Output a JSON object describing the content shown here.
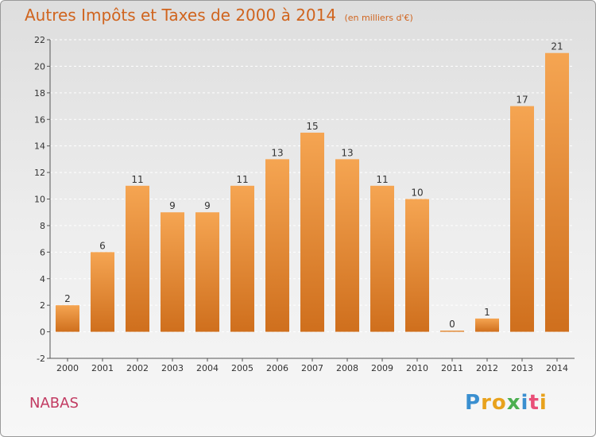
{
  "header": {
    "title": "Autres Impôts et Taxes de 2000 à 2014",
    "unit": "(en milliers d'€)"
  },
  "footer": {
    "commune": "NABAS",
    "brand": "Proxiti"
  },
  "colors": {
    "bar_top": "#f5a552",
    "bar_bottom": "#cf6f1d",
    "title": "#d0641e",
    "commune": "#c23b62",
    "axis": "#555555",
    "grid": "#ffffff"
  },
  "chart_data": {
    "type": "bar",
    "categories": [
      "2000",
      "2001",
      "2002",
      "2003",
      "2004",
      "2005",
      "2006",
      "2007",
      "2008",
      "2009",
      "2010",
      "2011",
      "2012",
      "2013",
      "2014"
    ],
    "values": [
      2,
      6,
      11,
      9,
      9,
      11,
      13,
      15,
      13,
      11,
      10,
      0,
      1,
      17,
      21
    ],
    "title": "Autres Impôts et Taxes de 2000 à 2014",
    "ylabel": "",
    "xlabel": "",
    "ylim": [
      -2,
      22
    ],
    "yticks": [
      -2,
      0,
      2,
      4,
      6,
      8,
      10,
      12,
      14,
      16,
      18,
      20,
      22
    ],
    "grid": "horizontal dashed",
    "legend": "none"
  }
}
